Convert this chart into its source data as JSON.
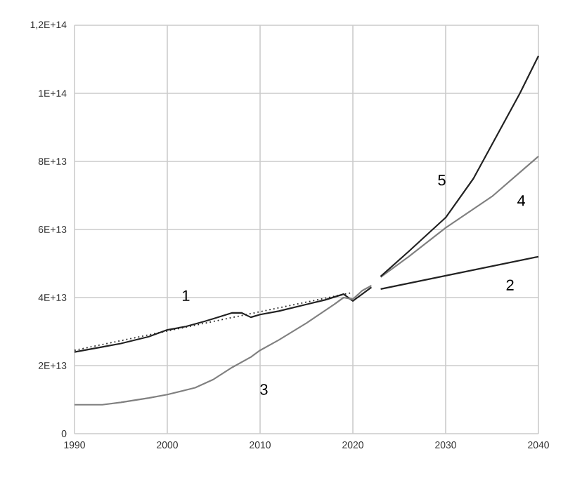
{
  "chart_data": {
    "type": "line",
    "xlim": [
      1990,
      2040
    ],
    "ylim": [
      0,
      120000000000000.0
    ],
    "xticks": [
      1990,
      2000,
      2010,
      2020,
      2030,
      2040
    ],
    "yticks": [
      0,
      {
        "value": 20000000000000.0,
        "label": "2E+13"
      },
      {
        "value": 40000000000000.0,
        "label": "4E+13"
      },
      {
        "value": 60000000000000.0,
        "label": "6E+13"
      },
      {
        "value": 80000000000000.0,
        "label": "8E+13"
      },
      {
        "value": 100000000000000.0,
        "label": "1E+14"
      },
      {
        "value": 120000000000000.0,
        "label": "1,2E+14"
      }
    ],
    "grid": true,
    "marker": "none",
    "series": [
      {
        "name": "1",
        "color": "#222222",
        "line_style": "solid",
        "x": [
          1990,
          1993,
          1995,
          1998,
          2000,
          2002,
          2004,
          2005,
          2007,
          2008,
          2009,
          2010,
          2012,
          2015,
          2017,
          2019,
          2020,
          2021,
          2022
        ],
        "values": [
          24000000000000.0,
          25500000000000.0,
          26500000000000.0,
          28500000000000.0,
          30500000000000.0,
          31500000000000.0,
          33000000000000.0,
          33800000000000.0,
          35500000000000.0,
          35500000000000.0,
          34200000000000.0,
          35000000000000.0,
          36000000000000.0,
          38000000000000.0,
          39300000000000.0,
          41000000000000.0,
          39000000000000.0,
          41000000000000.0,
          43000000000000.0
        ]
      },
      {
        "color": "#222222",
        "line_style": "dotted",
        "x": [
          1990,
          2020
        ],
        "values": [
          24500000000000.0,
          41500000000000.0
        ]
      },
      {
        "name": "3",
        "color": "#808080",
        "line_style": "solid",
        "x": [
          1990,
          1993,
          1995,
          1998,
          2000,
          2003,
          2005,
          2007,
          2009,
          2010,
          2012,
          2015,
          2018,
          2019,
          2020,
          2021,
          2022
        ],
        "values": [
          8500000000000.0,
          8500000000000.0,
          9200000000000.0,
          10500000000000.0,
          11500000000000.0,
          13500000000000.0,
          16000000000000.0,
          19500000000000.0,
          22500000000000.0,
          24500000000000.0,
          27500000000000.0,
          32500000000000.0,
          38000000000000.0,
          40000000000000.0,
          39500000000000.0,
          42000000000000.0,
          43500000000000.0
        ]
      },
      {
        "name": "2",
        "color": "#222222",
        "line_style": "solid",
        "x": [
          2023,
          2040
        ],
        "values": [
          42500000000000.0,
          52000000000000.0
        ]
      },
      {
        "name": "4",
        "color": "#808080",
        "line_style": "solid",
        "x": [
          2023,
          2026,
          2030,
          2035,
          2040
        ],
        "values": [
          46000000000000.0,
          52000000000000.0,
          60500000000000.0,
          69700000000000.0,
          81500000000000.0
        ]
      },
      {
        "name": "5",
        "color": "#222222",
        "line_style": "solid",
        "x": [
          2023,
          2026,
          2030,
          2033,
          2035,
          2038,
          2040
        ],
        "values": [
          46200000000000.0,
          53500000000000.0,
          63500000000000.0,
          75000000000000.0,
          85000000000000.0,
          100000000000000.0,
          111000000000000.0
        ]
      }
    ]
  }
}
